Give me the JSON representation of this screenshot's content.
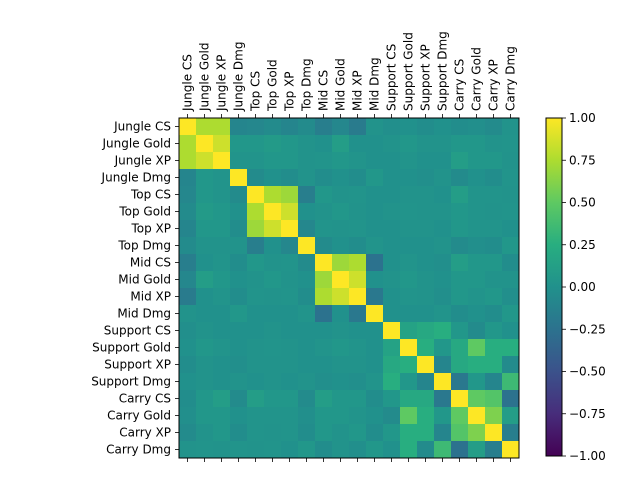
{
  "chart_data": {
    "type": "heatmap",
    "title": "",
    "xlabel": "",
    "ylabel": "",
    "labels": [
      "Jungle CS",
      "Jungle Gold",
      "Jungle XP",
      "Jungle Dmg",
      "Top CS",
      "Top Gold",
      "Top XP",
      "Top Dmg",
      "Mid CS",
      "Mid Gold",
      "Mid XP",
      "Mid Dmg",
      "Support CS",
      "Support Gold",
      "Support XP",
      "Support Dmg",
      "Carry CS",
      "Carry Gold",
      "Carry XP",
      "Carry Dmg"
    ],
    "x_labels_position": "top",
    "x_labels_rotation": "vertical",
    "vmin": -1.0,
    "vmax": 1.0,
    "colormap": "viridis",
    "colorbar": {
      "position": "right",
      "ticks": [
        -1.0,
        -0.75,
        -0.5,
        -0.25,
        0.0,
        0.25,
        0.5,
        0.75,
        1.0
      ],
      "tick_labels": [
        "−1.00",
        "−0.75",
        "−0.50",
        "−0.25",
        "0.00",
        "0.25",
        "0.50",
        "0.75",
        "1.00"
      ]
    },
    "values": [
      [
        1.0,
        0.75,
        0.75,
        -0.1,
        -0.08,
        -0.05,
        -0.1,
        -0.05,
        -0.15,
        -0.08,
        -0.18,
        0.02,
        -0.02,
        0.0,
        -0.03,
        0.0,
        -0.03,
        -0.02,
        -0.05,
        0.02
      ],
      [
        0.75,
        1.0,
        0.85,
        0.05,
        0.05,
        0.08,
        0.05,
        0.02,
        0.0,
        0.1,
        0.0,
        0.0,
        0.02,
        0.05,
        0.02,
        0.02,
        0.05,
        0.05,
        0.02,
        0.03
      ],
      [
        0.75,
        0.85,
        1.0,
        0.03,
        0.03,
        0.05,
        0.05,
        0.02,
        0.03,
        0.05,
        0.03,
        0.0,
        0.0,
        0.03,
        0.0,
        0.0,
        0.1,
        0.05,
        0.05,
        0.02
      ],
      [
        -0.1,
        0.05,
        0.03,
        1.0,
        -0.05,
        0.0,
        -0.03,
        0.02,
        -0.03,
        0.0,
        -0.03,
        0.05,
        0.0,
        0.0,
        -0.02,
        0.02,
        -0.05,
        0.0,
        -0.03,
        0.03
      ],
      [
        -0.08,
        0.05,
        0.03,
        -0.05,
        1.0,
        0.75,
        0.7,
        -0.15,
        0.05,
        0.02,
        0.03,
        0.0,
        0.0,
        0.02,
        0.02,
        0.0,
        0.1,
        0.03,
        0.03,
        0.02
      ],
      [
        -0.05,
        0.08,
        0.05,
        0.0,
        0.75,
        1.0,
        0.85,
        0.0,
        0.02,
        0.05,
        0.02,
        0.0,
        0.02,
        0.03,
        0.02,
        0.02,
        0.05,
        0.03,
        0.02,
        0.03
      ],
      [
        -0.1,
        0.05,
        0.05,
        -0.03,
        0.7,
        0.85,
        1.0,
        -0.08,
        0.03,
        0.02,
        0.03,
        0.0,
        0.0,
        0.02,
        0.02,
        0.0,
        0.05,
        0.03,
        0.03,
        0.0
      ],
      [
        -0.05,
        0.02,
        0.02,
        0.02,
        -0.15,
        0.0,
        -0.08,
        1.0,
        -0.05,
        0.0,
        -0.03,
        0.03,
        0.0,
        0.0,
        0.0,
        0.02,
        -0.05,
        -0.02,
        -0.03,
        0.05
      ],
      [
        -0.15,
        0.0,
        0.03,
        -0.03,
        0.05,
        0.02,
        0.03,
        -0.05,
        1.0,
        0.7,
        0.75,
        -0.25,
        0.0,
        0.03,
        0.0,
        -0.02,
        0.1,
        0.05,
        0.05,
        -0.03
      ],
      [
        -0.08,
        0.1,
        0.05,
        0.0,
        0.02,
        0.05,
        0.02,
        0.0,
        0.7,
        1.0,
        0.85,
        0.0,
        0.02,
        0.05,
        0.02,
        0.0,
        0.05,
        0.05,
        0.02,
        0.02
      ],
      [
        -0.18,
        0.0,
        0.03,
        -0.03,
        0.03,
        0.02,
        0.03,
        -0.03,
        0.75,
        0.85,
        1.0,
        -0.2,
        0.0,
        0.03,
        0.02,
        -0.02,
        0.05,
        0.03,
        0.05,
        -0.02
      ],
      [
        0.02,
        0.0,
        0.0,
        0.05,
        0.0,
        0.0,
        0.0,
        0.03,
        -0.25,
        0.0,
        -0.2,
        1.0,
        0.0,
        0.0,
        0.0,
        0.03,
        -0.03,
        0.0,
        -0.03,
        0.05
      ],
      [
        -0.02,
        0.02,
        0.0,
        0.0,
        0.0,
        0.02,
        0.0,
        0.0,
        0.0,
        0.02,
        0.0,
        0.0,
        1.0,
        0.15,
        0.2,
        0.25,
        0.05,
        -0.05,
        0.05,
        0.0
      ],
      [
        0.0,
        0.05,
        0.03,
        0.0,
        0.02,
        0.03,
        0.02,
        0.0,
        0.03,
        0.05,
        0.03,
        0.0,
        0.15,
        1.0,
        0.25,
        0.05,
        0.2,
        0.5,
        0.25,
        0.25
      ],
      [
        -0.03,
        0.02,
        0.0,
        -0.02,
        0.02,
        0.02,
        0.02,
        0.0,
        0.0,
        0.02,
        0.02,
        0.0,
        0.2,
        0.25,
        1.0,
        -0.1,
        0.2,
        0.25,
        0.25,
        -0.05
      ],
      [
        0.0,
        0.02,
        0.0,
        0.02,
        0.0,
        0.02,
        0.0,
        0.02,
        -0.02,
        0.0,
        -0.02,
        0.03,
        0.25,
        0.05,
        -0.1,
        1.0,
        -0.2,
        0.05,
        -0.1,
        0.35
      ],
      [
        -0.03,
        0.05,
        0.1,
        -0.05,
        0.1,
        0.05,
        0.05,
        -0.05,
        0.1,
        0.05,
        0.05,
        -0.03,
        0.05,
        0.2,
        0.2,
        -0.2,
        1.0,
        0.5,
        0.45,
        -0.25
      ],
      [
        -0.02,
        0.05,
        0.05,
        0.0,
        0.03,
        0.03,
        0.03,
        -0.02,
        0.05,
        0.05,
        0.03,
        0.0,
        -0.05,
        0.5,
        0.25,
        0.05,
        0.5,
        1.0,
        0.6,
        0.1
      ],
      [
        -0.05,
        0.02,
        0.05,
        -0.03,
        0.03,
        0.02,
        0.03,
        -0.03,
        0.05,
        0.02,
        0.05,
        -0.03,
        0.05,
        0.25,
        0.25,
        -0.1,
        0.45,
        0.6,
        1.0,
        -0.15
      ],
      [
        0.02,
        0.03,
        0.02,
        0.03,
        0.02,
        0.03,
        0.0,
        0.05,
        -0.03,
        0.02,
        -0.02,
        0.05,
        0.0,
        0.25,
        -0.05,
        0.35,
        -0.25,
        0.1,
        -0.15,
        1.0
      ]
    ]
  }
}
